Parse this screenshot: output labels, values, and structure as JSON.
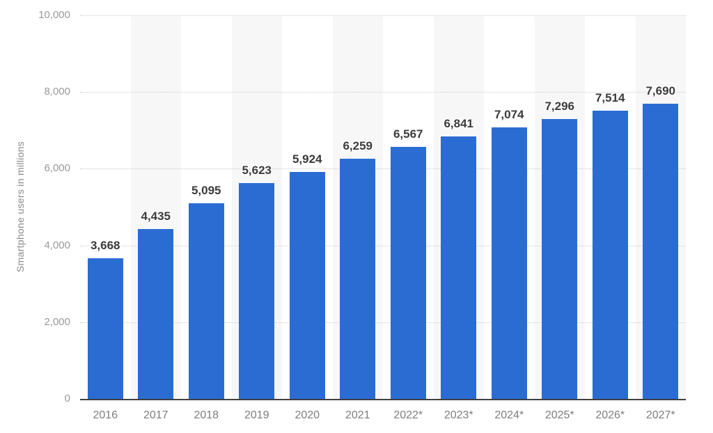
{
  "chart_data": {
    "type": "bar",
    "title": "",
    "categories": [
      "2016",
      "2017",
      "2018",
      "2019",
      "2020",
      "2021",
      "2022*",
      "2023*",
      "2024*",
      "2025*",
      "2026*",
      "2027*"
    ],
    "values": [
      3668,
      4435,
      5095,
      5623,
      5924,
      6259,
      6567,
      6841,
      7074,
      7296,
      7514,
      7690
    ],
    "value_labels": [
      "3,668",
      "4,435",
      "5,095",
      "5,623",
      "5,924",
      "6,259",
      "6,567",
      "6,841",
      "7,074",
      "7,296",
      "7,514",
      "7,690"
    ],
    "xlabel": "",
    "ylabel": "Smartphone users in millions",
    "ylim": [
      0,
      10000
    ],
    "ytick_step": 2000,
    "ytick_labels": [
      "0",
      "2,000",
      "4,000",
      "6,000",
      "8,000",
      "10,000"
    ],
    "grid": "horizontal-dotted",
    "legend": "none",
    "column_bands": "alternating, behind every second category starting at 2017",
    "colors": {
      "bar": "#2b6cd3",
      "column_band": "#f7f7f8",
      "gridline": "#c9c9c9",
      "axis_line": "#404040",
      "value_label": "#3a3a3a",
      "x_tick_text": "#7d7d7d",
      "y_tick_text": "#999999",
      "y_title_text": "#8a8a8a",
      "background": "#ffffff"
    }
  }
}
